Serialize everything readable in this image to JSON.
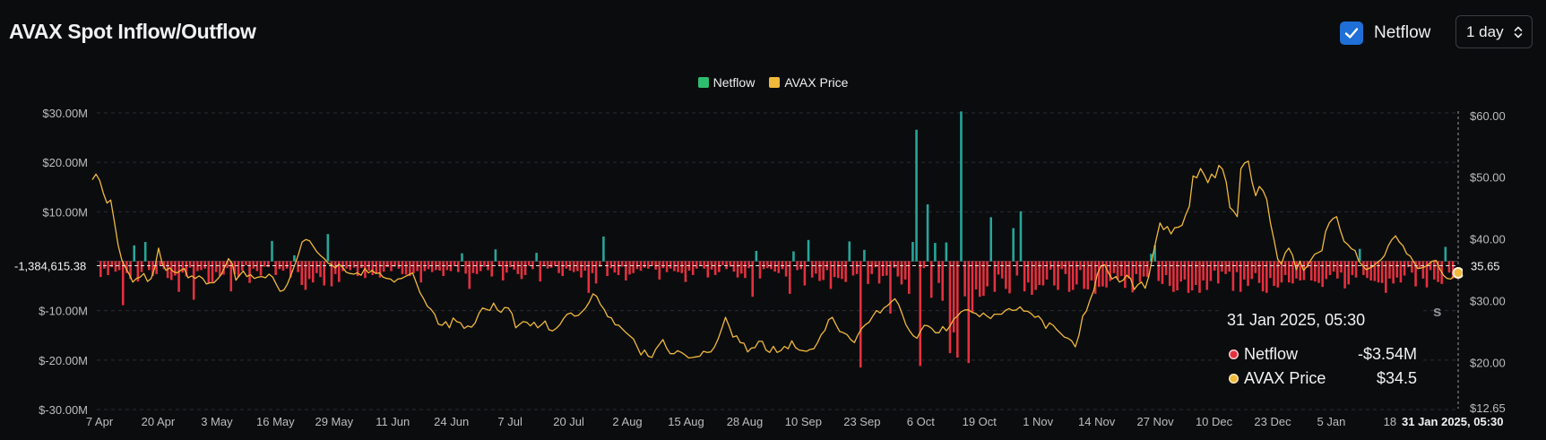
{
  "header": {
    "title": "AVAX Spot Inflow/Outflow",
    "netflow_toggle_label": "Netflow",
    "netflow_checked": true,
    "range_select_value": "1 day"
  },
  "colors": {
    "inflow": "#26a69a",
    "outflow": "#e5303f",
    "price": "#f0b93a",
    "legend_netflow": "#2ebd6e",
    "legend_price": "#f0b93a",
    "checkbox": "#1f6fd6"
  },
  "legend": [
    {
      "label": "Netflow",
      "color": "#2ebd6e"
    },
    {
      "label": "AVAX Price",
      "color": "#f0b93a"
    }
  ],
  "crosshair": {
    "left_value": "-1,384,615.38",
    "right_value": "35.65",
    "bottom_date": "31 Jan 2025, 05:30"
  },
  "tooltip": {
    "date": "31 Jan 2025, 05:30",
    "rows": [
      {
        "label": "Netflow",
        "value": "-$3.54M",
        "color": "#e5303f"
      },
      {
        "label": "AVAX Price",
        "value": "$34.5",
        "color": "#f0b93a"
      }
    ]
  },
  "watermark": "s",
  "chart_data": {
    "type": "bar",
    "x_tick_labels": [
      "7 Apr",
      "20 Apr",
      "3 May",
      "16 May",
      "29 May",
      "11 Jun",
      "24 Jun",
      "7 Jul",
      "20 Jul",
      "2 Aug",
      "15 Aug",
      "28 Aug",
      "10 Sep",
      "23 Sep",
      "6 Oct",
      "19 Oct",
      "1 Nov",
      "14 Nov",
      "27 Nov",
      "10 Dec",
      "23 Dec",
      "5 Jan",
      "18"
    ],
    "y_left": {
      "ticks": [
        "$30.00M",
        "$20.00M",
        "$10.00M",
        "$-10.00M",
        "$-20.00M",
        "$-30.00M"
      ],
      "tick_values": [
        30,
        20,
        10,
        -10,
        -20,
        -30
      ],
      "range": [
        -30,
        30
      ],
      "unit": "$M"
    },
    "y_right": {
      "ticks": [
        "$60.00",
        "$50.00",
        "$40.00",
        "$30.00",
        "$20.00",
        "$12.65"
      ],
      "tick_values": [
        60,
        50,
        40,
        30,
        20,
        12.65
      ],
      "range": [
        12.65,
        60.7
      ]
    },
    "series": [
      {
        "name": "Netflow",
        "type": "bar",
        "values": [
          -3.2,
          -1.5,
          -2.8,
          -1.2,
          -2.1,
          -1.8,
          -8.9,
          -2.4,
          -3.6,
          3.2,
          -4.1,
          -2.2,
          3.9,
          -1.8,
          -3.0,
          -2.6,
          -0.9,
          -1.6,
          -3.4,
          -3.8,
          -2.9,
          -6.2,
          -2.3,
          -3.1,
          -1.3,
          -7.8,
          -2.0,
          -1.8,
          -1.5,
          -4.5,
          -4.2,
          -2.2,
          -3.0,
          -2.7,
          -1.4,
          -6.1,
          -2.6,
          -3.2,
          -1.9,
          -0.8,
          -4.4,
          -1.5,
          -2.0,
          -2.9,
          -1.1,
          -1.2,
          4.1,
          -2.8,
          -1.6,
          -1.9,
          -1.5,
          -3.3,
          1.2,
          -2.2,
          -4.8,
          -5.8,
          -3.6,
          -4.3,
          -2.4,
          -3.2,
          -4.9,
          5.5,
          -5.1,
          -2.6,
          -4.2,
          -2.0,
          -1.5,
          -1.8,
          -1.3,
          -3.0,
          -1.4,
          -3.4,
          -1.9,
          -2.8,
          -2.5,
          -3.3,
          -2.1,
          -1.2,
          -2.0,
          -1.1,
          -1.5,
          -2.6,
          -2.7,
          -3.0,
          -2.4,
          -2.0,
          -4.3,
          -2.0,
          -1.6,
          -2.2,
          -1.8,
          -1.9,
          -3.0,
          -1.8,
          -2.0,
          -1.0,
          -2.2,
          1.6,
          -2.5,
          -5.6,
          -2.4,
          -2.6,
          -2.0,
          -1.1,
          -1.8,
          -3.1,
          2.4,
          -1.0,
          -3.9,
          -2.3,
          -1.2,
          -1.7,
          -2.6,
          -3.6,
          -2.8,
          -0.9,
          -1.6,
          1.7,
          -4.1,
          -0.8,
          -1.5,
          -1.3,
          -0.9,
          -2.4,
          -3.0,
          -1.5,
          -1.9,
          -2.2,
          -2.0,
          -3.3,
          -1.9,
          -6.4,
          -2.4,
          -4.5,
          -1.1,
          5.0,
          -3.0,
          -1.4,
          -2.3,
          -2.8,
          -1.1,
          -3.9,
          -2.7,
          -2.4,
          -1.6,
          -1.9,
          -1.3,
          -1.5,
          -0.9,
          -1.7,
          -3.7,
          -1.4,
          -2.2,
          -1.5,
          -2.0,
          -2.2,
          -2.4,
          -4.2,
          -1.9,
          -2.8,
          -1.5,
          -1.0,
          -1.5,
          -3.3,
          -1.7,
          -2.8,
          -2.2,
          -0.8,
          -1.6,
          -1.1,
          -2.1,
          -3.3,
          -2.5,
          -3.4,
          -1.4,
          -7.2,
          2.1,
          -3.5,
          -1.6,
          -1.4,
          -1.6,
          -2.1,
          -2.4,
          -1.6,
          -3.1,
          -6.6,
          2.0,
          -1.8,
          -1.6,
          -4.9,
          4.3,
          -3.3,
          -2.5,
          -4.0,
          -3.8,
          -1.8,
          -5.6,
          -3.2,
          -3.4,
          -3.6,
          -4.2,
          4.0,
          -2.9,
          -2.6,
          -21.5,
          2.3,
          -4.6,
          -2.6,
          -1.2,
          -4.5,
          -3.0,
          -2.9,
          -10.6,
          -1.3,
          -3.1,
          -4.7,
          -3.7,
          -6.6,
          3.9,
          26.6,
          -21.2,
          -1.4,
          11.5,
          -7.4,
          3.7,
          -4.4,
          -8.0,
          3.8,
          -18.6,
          -14.4,
          -19.5,
          30.3,
          -7.1,
          -20.6,
          -10.4,
          -5.7,
          -7.2,
          -7.0,
          -5.1,
          8.9,
          -6.2,
          -2.7,
          -3.5,
          -5.6,
          -6.5,
          6.7,
          -2.9,
          10.1,
          -6.1,
          -4.3,
          -6.8,
          -5.8,
          -4.8,
          -4.9,
          -3.7,
          -1.7,
          -4.9,
          -5.8,
          -1.6,
          -2.6,
          -6.2,
          -5.8,
          -4.7,
          -1.8,
          -5.6,
          -5.7,
          -3.9,
          -6.6,
          -5.2,
          -5.1,
          -5.3,
          -4.0,
          -2.4,
          -3.7,
          -3.0,
          -5.4,
          -3.5,
          -6.3,
          -2.6,
          -4.2,
          -3.1,
          -3.2,
          1.5,
          3.2,
          -4.0,
          -4.6,
          -2.8,
          -5.0,
          -6.2,
          -5.9,
          -4.1,
          -3.7,
          -6.4,
          -5.9,
          -4.8,
          -6.4,
          -3.9,
          -5.8,
          -4.0,
          -1.9,
          -4.5,
          -2.1,
          -2.6,
          -2.1,
          -6.0,
          -2.2,
          -6.2,
          -3.7,
          -5.0,
          -3.6,
          -2.4,
          -4.4,
          -6.1,
          -6.4,
          -3.4,
          -5.0,
          -5.3,
          -4.3,
          -2.8,
          -4.3,
          -4.5,
          -3.5,
          -3.9,
          -3.8,
          -1.3,
          -3.9,
          -4.1,
          -4.4,
          -5.2,
          -3.6,
          -2.8,
          -2.1,
          -3.5,
          -2.3,
          -5.5,
          -4.7,
          -2.8,
          -3.3,
          2.5,
          -2.8,
          -3.4,
          -3.9,
          -4.0,
          -4.3,
          -4.4,
          -6.4,
          -3.5,
          -4.5,
          -3.3,
          -4.3,
          -2.9,
          -1.2,
          -2.3,
          -5.1,
          -1.4,
          -3.5,
          -5.3,
          -1.8,
          -3.7,
          -4.2,
          -4.6,
          2.9,
          -2.3,
          -3.54
        ],
        "y_axis": "left",
        "unit": "$M"
      },
      {
        "name": "AVAX Price",
        "type": "line",
        "y_axis": "right",
        "values": [
          49.6,
          50.5,
          49.5,
          47.4,
          45.8,
          46.3,
          42.8,
          39.0,
          36.6,
          35.4,
          34.3,
          33.0,
          33.6,
          33.8,
          34.4,
          33.1,
          33.6,
          35.4,
          38.5,
          36.0,
          34.9,
          35.3,
          34.7,
          34.5,
          34.9,
          35.2,
          33.7,
          34.0,
          33.6,
          34.0,
          33.6,
          32.7,
          32.9,
          32.9,
          33.5,
          34.2,
          35.5,
          36.8,
          36.0,
          33.3,
          34.1,
          34.8,
          33.9,
          34.2,
          33.6,
          33.8,
          33.9,
          33.7,
          34.3,
          33.8,
          32.6,
          31.5,
          31.7,
          32.7,
          34.2,
          35.8,
          37.5,
          39.5,
          39.9,
          39.7,
          38.8,
          37.9,
          37.3,
          36.8,
          36.1,
          35.8,
          35.3,
          35.9,
          35.4,
          34.6,
          34.4,
          34.3,
          34.5,
          34.1,
          35.2,
          34.5,
          34.9,
          34.4,
          34.5,
          33.8,
          33.6,
          33.5,
          33.0,
          33.5,
          33.6,
          33.9,
          34.2,
          34.5,
          32.9,
          31.3,
          30.3,
          29.1,
          28.6,
          27.8,
          26.2,
          26.0,
          26.6,
          25.6,
          27.2,
          26.6,
          26.4,
          25.5,
          25.9,
          25.7,
          26.4,
          27.9,
          28.8,
          28.6,
          28.4,
          29.6,
          28.5,
          28.1,
          28.9,
          28.8,
          27.9,
          25.6,
          26.1,
          26.6,
          26.5,
          25.9,
          26.5,
          25.6,
          26.1,
          26.7,
          25.3,
          25.1,
          25.5,
          26.1,
          27.1,
          27.8,
          28.0,
          27.5,
          27.6,
          28.2,
          28.8,
          29.8,
          31.1,
          30.7,
          29.4,
          28.6,
          27.4,
          27.2,
          26.1,
          26.0,
          25.4,
          24.8,
          24.3,
          23.8,
          22.5,
          21.2,
          22.0,
          21.0,
          20.8,
          22.1,
          22.9,
          23.7,
          22.3,
          21.4,
          21.4,
          21.9,
          21.6,
          21.2,
          20.7,
          20.8,
          20.9,
          21.0,
          21.8,
          21.6,
          21.7,
          22.5,
          23.8,
          25.5,
          27.3,
          25.8,
          24.1,
          24.3,
          23.2,
          23.1,
          21.7,
          22.3,
          22.4,
          23.4,
          23.4,
          22.0,
          21.6,
          22.6,
          21.6,
          21.9,
          22.6,
          22.2,
          23.5,
          22.4,
          22.0,
          21.9,
          21.8,
          22.1,
          22.2,
          23.2,
          24.5,
          25.2,
          26.9,
          27.3,
          26.1,
          25.0,
          24.8,
          24.5,
          23.7,
          23.2,
          24.5,
          25.5,
          26.1,
          26.5,
          27.5,
          28.4,
          28.0,
          28.8,
          29.2,
          29.8,
          30.3,
          29.4,
          27.8,
          26.1,
          25.1,
          24.3,
          23.9,
          25.1,
          26.0,
          25.9,
          25.5,
          24.8,
          24.8,
          25.8,
          25.1,
          25.9,
          27.0,
          27.5,
          28.2,
          28.5,
          28.5,
          28.1,
          27.9,
          27.4,
          28.0,
          27.5,
          27.1,
          27.8,
          27.8,
          27.8,
          28.4,
          28.7,
          28.4,
          28.5,
          29.0,
          28.3,
          28.3,
          27.9,
          27.3,
          27.5,
          26.8,
          25.5,
          26.4,
          26.0,
          25.3,
          24.7,
          24.1,
          23.9,
          23.5,
          22.5,
          24.4,
          27.5,
          28.3,
          30.1,
          31.6,
          34.3,
          35.6,
          35.8,
          34.5,
          33.5,
          33.9,
          33.0,
          33.3,
          34.1,
          33.6,
          31.8,
          32.6,
          33.0,
          32.0,
          34.0,
          37.2,
          40.0,
          42.6,
          41.5,
          42.0,
          40.8,
          41.8,
          41.9,
          42.2,
          43.9,
          45.3,
          50.2,
          49.9,
          51.4,
          50.4,
          49.1,
          50.5,
          49.9,
          51.9,
          51.3,
          49.2,
          45.1,
          44.5,
          43.6,
          51.4,
          52.3,
          52.6,
          49.2,
          47.0,
          48.5,
          47.8,
          46.4,
          42.6,
          39.8,
          36.7,
          35.9,
          37.7,
          38.5,
          37.4,
          35.0,
          36.4,
          34.9,
          35.6,
          36.6,
          37.5,
          37.8,
          38.1,
          41.2,
          42.6,
          43.3,
          43.6,
          41.4,
          39.6,
          39.1,
          38.4,
          38.1,
          36.4,
          35.7,
          35.0,
          35.3,
          35.6,
          36.2,
          36.6,
          37.3,
          38.9,
          39.9,
          40.5,
          39.5,
          38.9,
          37.6,
          37.2,
          36.2,
          35.2,
          35.3,
          35.5,
          35.9,
          36.4,
          36.5,
          35.1,
          34.1,
          33.6,
          33.5,
          34.1,
          34.5
        ]
      }
    ],
    "xlabel": "",
    "ylabel": "",
    "grid": true,
    "legend_position": "top-center"
  }
}
